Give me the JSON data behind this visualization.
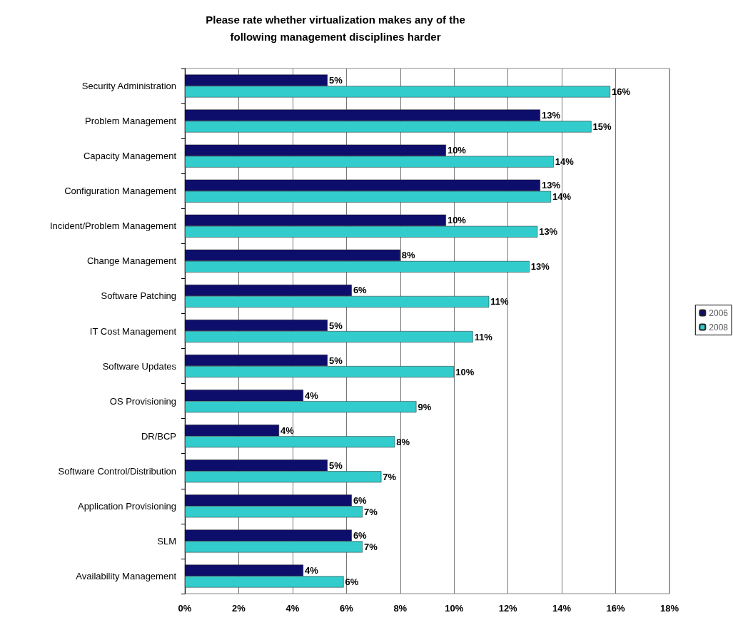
{
  "chart_data": {
    "type": "bar",
    "orientation": "horizontal",
    "title": "Please rate whether virtualization makes any of the\nfollowing management disciplines harder",
    "categories": [
      "Security Administration",
      "Problem Management",
      "Capacity Management",
      "Configuration Management",
      "Incident/Problem Management",
      "Change Management",
      "Software Patching",
      "IT Cost Management",
      "Software Updates",
      "OS Provisioning",
      "DR/BCP",
      "Software Control/Distribution",
      "Application Provisioning",
      "SLM",
      "Availability Management"
    ],
    "series": [
      {
        "name": "2006",
        "color": "#0d0d6b",
        "values": [
          5.3,
          13.2,
          9.7,
          13.2,
          9.7,
          8.0,
          6.2,
          5.3,
          5.3,
          4.4,
          3.5,
          5.3,
          6.2,
          6.2,
          4.4
        ],
        "value_labels": [
          "5%",
          "13%",
          "10%",
          "13%",
          "10%",
          "8%",
          "6%",
          "5%",
          "5%",
          "4%",
          "4%",
          "5%",
          "6%",
          "6%",
          "4%"
        ]
      },
      {
        "name": "2008",
        "color": "#33cccc",
        "values": [
          15.8,
          15.1,
          13.7,
          13.6,
          13.1,
          12.8,
          11.3,
          10.7,
          10.0,
          8.6,
          7.8,
          7.3,
          6.6,
          6.6,
          5.9
        ],
        "value_labels": [
          "16%",
          "15%",
          "14%",
          "14%",
          "13%",
          "13%",
          "11%",
          "11%",
          "10%",
          "9%",
          "8%",
          "7%",
          "7%",
          "7%",
          "6%"
        ]
      }
    ],
    "xlim": [
      0,
      18
    ],
    "xticks": [
      {
        "value": 0,
        "label": "0%"
      },
      {
        "value": 2,
        "label": "2%"
      },
      {
        "value": 4,
        "label": "4%"
      },
      {
        "value": 6,
        "label": "6%"
      },
      {
        "value": 8,
        "label": "8%"
      },
      {
        "value": 10,
        "label": "10%"
      },
      {
        "value": 12,
        "label": "12%"
      },
      {
        "value": 14,
        "label": "14%"
      },
      {
        "value": 16,
        "label": "16%"
      },
      {
        "value": 18,
        "label": "18%"
      }
    ],
    "grid": "x",
    "legend": "right"
  }
}
